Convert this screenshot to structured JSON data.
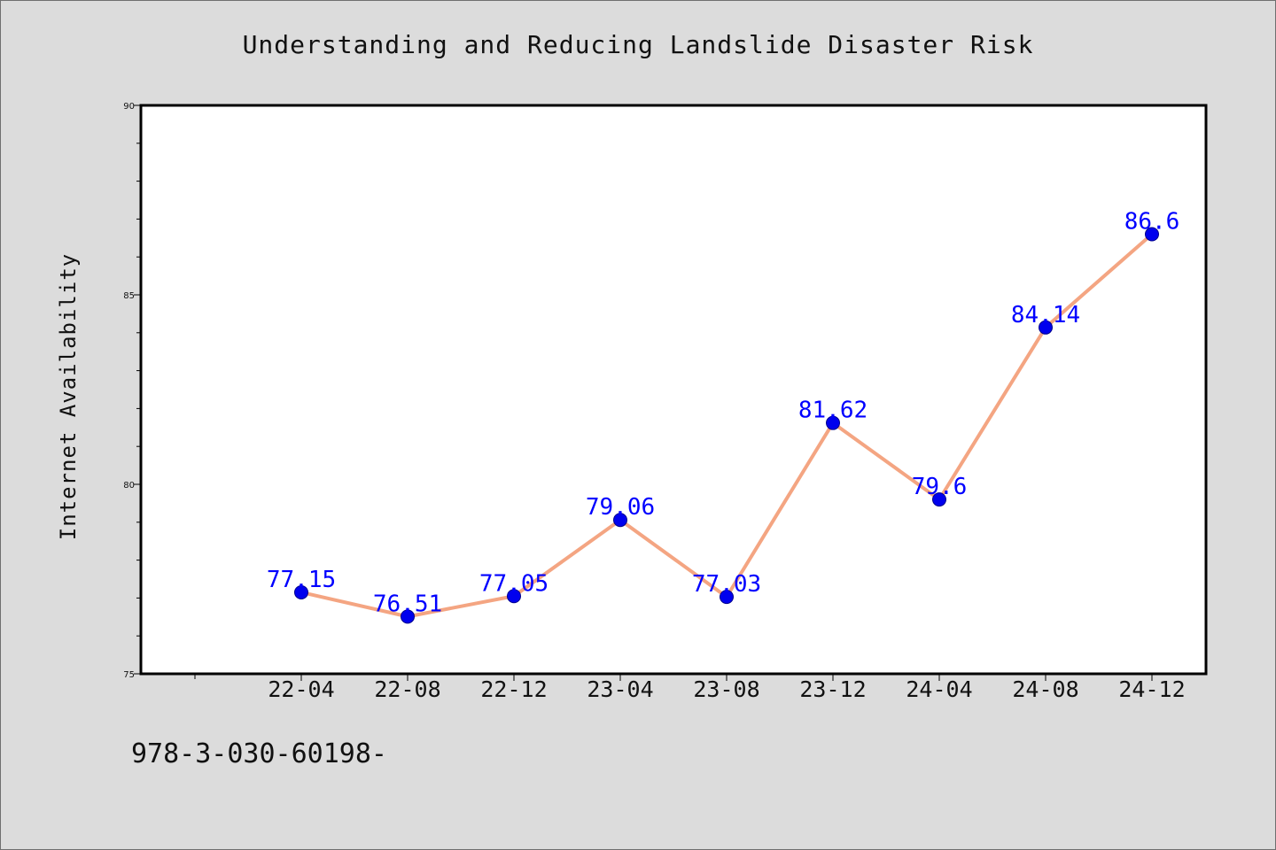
{
  "chart_data": {
    "type": "line",
    "title": "Understanding and Reducing Landslide Disaster Risk",
    "xlabel": "",
    "ylabel": "Internet Availability",
    "categories": [
      "22-04",
      "22-08",
      "22-12",
      "23-04",
      "23-08",
      "23-12",
      "24-04",
      "24-08",
      "24-12"
    ],
    "series": [
      {
        "values": [
          77.15,
          76.51,
          77.05,
          79.06,
          77.03,
          81.62,
          79.6,
          84.14,
          86.6
        ],
        "data_labels": [
          "77.15",
          "76.51",
          "77.05",
          "79.06",
          "77.03",
          "81.62",
          "79.6",
          "84.14",
          "86.6"
        ]
      }
    ],
    "ylim": [
      75,
      90
    ],
    "yticks": [
      75,
      80,
      85,
      90
    ],
    "grid": false,
    "line_color": "#f4a582",
    "marker_color": "#0000ee",
    "label_color": "#0000ff"
  },
  "footnote": "978-3-030-60198-"
}
